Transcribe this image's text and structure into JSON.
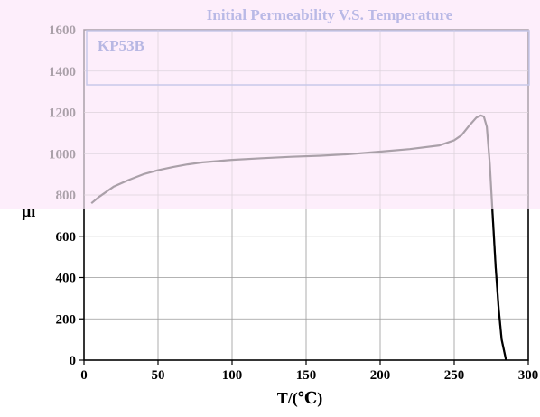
{
  "chart_data": {
    "type": "line",
    "title": "Initial Permeability V.S. Temperature",
    "material_label": "KP53B",
    "xlabel": "T/(℃)",
    "ylabel": "μi",
    "xlim": [
      0,
      300
    ],
    "ylim": [
      0,
      1600
    ],
    "x_ticks": [
      0,
      50,
      100,
      150,
      200,
      250,
      300
    ],
    "y_ticks": [
      0,
      200,
      400,
      600,
      800,
      1000,
      1200,
      1400,
      1600
    ],
    "grid": true,
    "overlay_color": "#fdeefb",
    "line_color": "#000000",
    "x": [
      5,
      10,
      20,
      30,
      40,
      50,
      60,
      70,
      80,
      90,
      100,
      120,
      140,
      160,
      180,
      200,
      220,
      240,
      250,
      255,
      260,
      265,
      268,
      270,
      272,
      274,
      276,
      278,
      280,
      282,
      285
    ],
    "y": [
      760,
      790,
      840,
      872,
      900,
      920,
      935,
      948,
      958,
      964,
      970,
      978,
      985,
      990,
      998,
      1010,
      1022,
      1040,
      1065,
      1090,
      1135,
      1175,
      1185,
      1180,
      1130,
      950,
      700,
      450,
      250,
      100,
      0
    ]
  }
}
